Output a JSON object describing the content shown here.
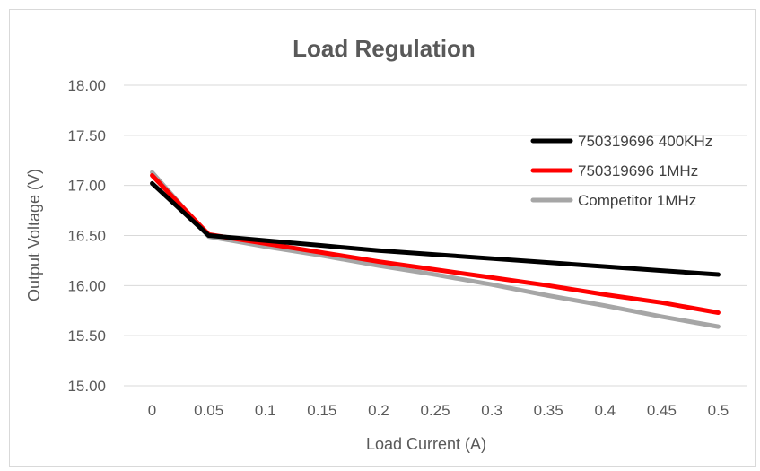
{
  "chart_data": {
    "type": "line",
    "title": "Load Regulation",
    "xlabel": "Load Current (A)",
    "ylabel": "Output Voltage (V)",
    "x": [
      "0",
      "0.05",
      "0.1",
      "0.15",
      "0.2",
      "0.25",
      "0.3",
      "0.35",
      "0.4",
      "0.45",
      "0.5"
    ],
    "ylim": [
      15.0,
      18.0
    ],
    "yticks": [
      "15.00",
      "15.50",
      "16.00",
      "16.50",
      "17.00",
      "17.50",
      "18.00"
    ],
    "grid": "horizontal",
    "legend_position": "right",
    "series": [
      {
        "name": "750319696 400KHz",
        "color": "#000000",
        "values": [
          17.02,
          16.5,
          16.45,
          16.4,
          16.35,
          16.31,
          16.27,
          16.23,
          16.19,
          16.15,
          16.11
        ]
      },
      {
        "name": "750319696 1MHz",
        "color": "#ff0000",
        "values": [
          17.1,
          16.51,
          16.42,
          16.33,
          16.24,
          16.16,
          16.08,
          16.0,
          15.91,
          15.83,
          15.73
        ]
      },
      {
        "name": "Competitor 1MHz",
        "color": "#a6a6a6",
        "values": [
          17.13,
          16.49,
          16.39,
          16.3,
          16.2,
          16.11,
          16.01,
          15.9,
          15.8,
          15.69,
          15.59
        ]
      }
    ]
  }
}
